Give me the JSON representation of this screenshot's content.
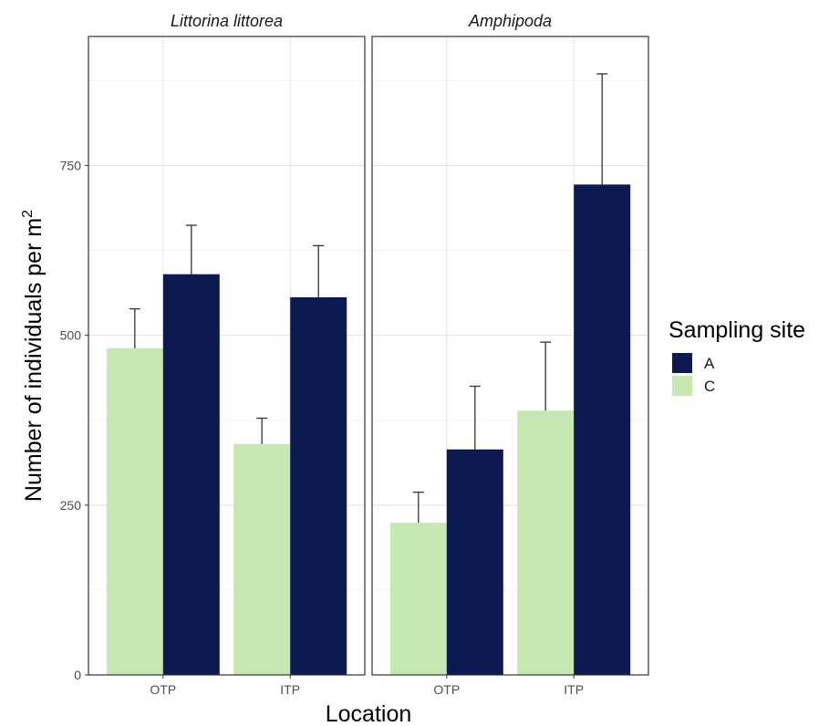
{
  "chart_data": {
    "type": "bar",
    "facets": [
      {
        "name": "Littorina littorea",
        "categories": [
          "OTP",
          "ITP"
        ],
        "series": [
          {
            "name": "C",
            "values": [
              481,
              340
            ],
            "error_upper": [
              539,
              378
            ]
          },
          {
            "name": "A",
            "values": [
              590,
              556
            ],
            "error_upper": [
              662,
              632
            ]
          }
        ]
      },
      {
        "name": "Amphipoda",
        "categories": [
          "OTP",
          "ITP"
        ],
        "series": [
          {
            "name": "C",
            "values": [
              224,
              389
            ],
            "error_upper": [
              269,
              490
            ]
          },
          {
            "name": "A",
            "values": [
              332,
              722
            ],
            "error_upper": [
              425,
              885
            ]
          }
        ]
      }
    ],
    "xlabel": "Location",
    "ylabel": "Number of individuals per m",
    "ylabel_superscript": "2",
    "ylim": [
      0,
      940
    ],
    "yticks": [
      0,
      250,
      500,
      750
    ],
    "grid": true,
    "legend": {
      "title": "Sampling site",
      "position": "right",
      "items": [
        {
          "label": "A",
          "color": "#0d1a52"
        },
        {
          "label": "C",
          "color": "#c5e8b2"
        }
      ]
    },
    "colors": {
      "A": "#0d1a52",
      "C": "#c5e8b2"
    }
  }
}
